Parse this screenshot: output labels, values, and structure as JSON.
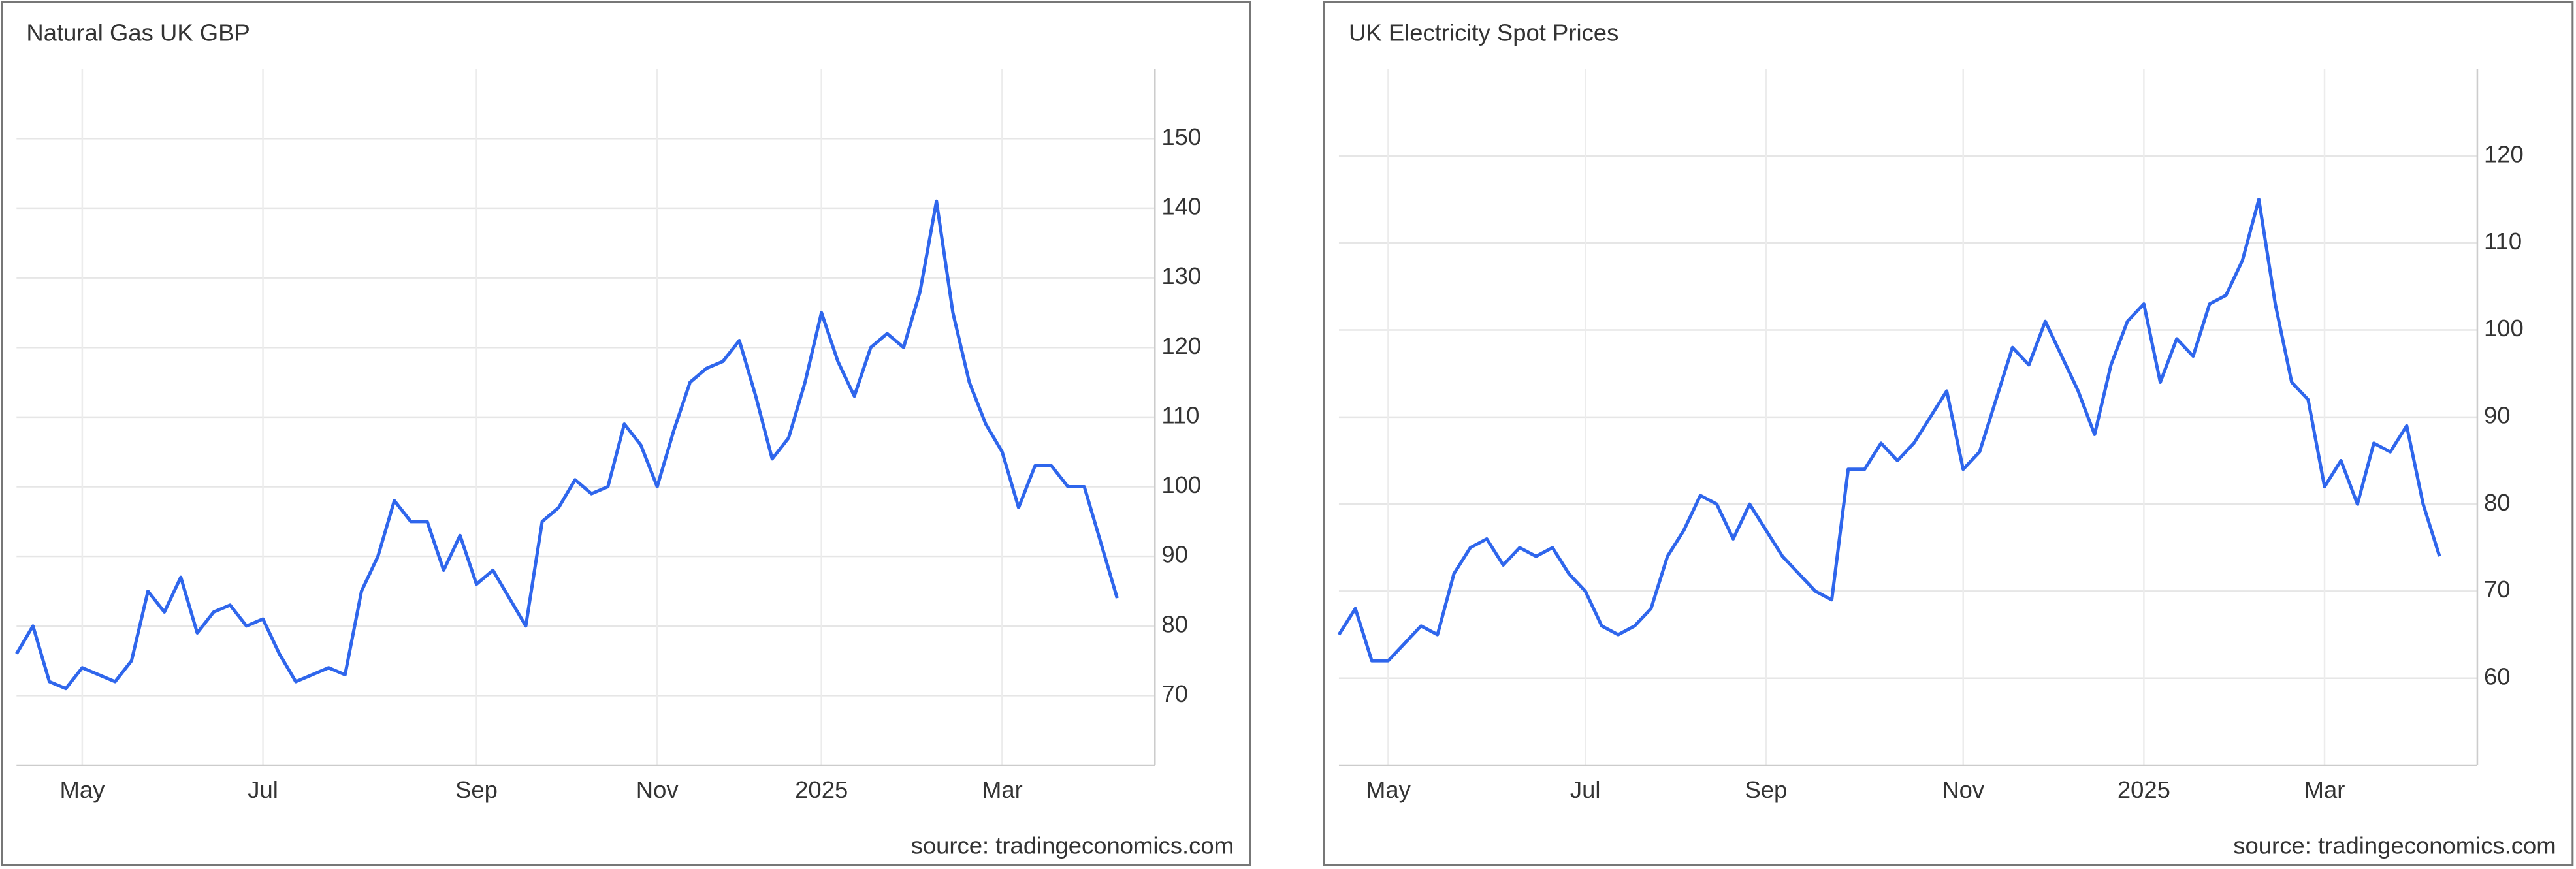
{
  "chart_data": [
    {
      "type": "line",
      "title": "Natural Gas UK GBP",
      "source": "source: tradingeconomics.com",
      "categories": [
        null,
        null,
        null,
        null,
        "May",
        null,
        null,
        null,
        null,
        null,
        null,
        null,
        null,
        null,
        null,
        "Jul",
        null,
        null,
        null,
        null,
        null,
        null,
        null,
        null,
        null,
        null,
        null,
        null,
        "Sep",
        null,
        null,
        null,
        null,
        null,
        null,
        null,
        null,
        null,
        null,
        "Nov",
        null,
        null,
        null,
        null,
        null,
        null,
        null,
        null,
        null,
        "2025",
        null,
        null,
        null,
        null,
        null,
        null,
        null,
        null,
        null,
        null,
        "Mar",
        null,
        null,
        null,
        null,
        null,
        null,
        null
      ],
      "series": [
        {
          "color": "#2f66ec",
          "values": [
            76,
            80,
            72,
            71,
            74,
            73,
            72,
            75,
            85,
            82,
            87,
            79,
            82,
            83,
            80,
            81,
            76,
            72,
            73,
            74,
            73,
            85,
            90,
            98,
            95,
            95,
            88,
            93,
            86,
            88,
            84,
            80,
            95,
            97,
            101,
            99,
            100,
            109,
            106,
            100,
            108,
            115,
            117,
            118,
            121,
            113,
            104,
            107,
            115,
            125,
            118,
            113,
            120,
            122,
            120,
            128,
            141,
            125,
            115,
            109,
            105,
            97,
            103,
            103,
            100,
            100,
            92,
            84
          ]
        }
      ],
      "ylim": [
        60,
        160
      ],
      "yticks": [
        70,
        80,
        90,
        100,
        110,
        120,
        130,
        140,
        150
      ],
      "grid": true
    },
    {
      "type": "line",
      "title": "UK Electricity Spot Prices",
      "source": "source: tradingeconomics.com",
      "categories": [
        null,
        null,
        null,
        "May",
        null,
        null,
        null,
        null,
        null,
        null,
        null,
        null,
        null,
        null,
        null,
        "Jul",
        null,
        null,
        null,
        null,
        null,
        null,
        null,
        null,
        null,
        null,
        "Sep",
        null,
        null,
        null,
        null,
        null,
        null,
        null,
        null,
        null,
        null,
        null,
        "Nov",
        null,
        null,
        null,
        null,
        null,
        null,
        null,
        null,
        null,
        null,
        "2025",
        null,
        null,
        null,
        null,
        null,
        null,
        null,
        null,
        null,
        null,
        "Mar",
        null,
        null,
        null,
        null,
        null,
        null,
        null
      ],
      "series": [
        {
          "color": "#2f66ec",
          "values": [
            65,
            68,
            62,
            62,
            64,
            66,
            65,
            72,
            75,
            76,
            73,
            75,
            74,
            75,
            72,
            70,
            66,
            65,
            66,
            68,
            74,
            77,
            81,
            80,
            76,
            80,
            77,
            74,
            72,
            70,
            69,
            84,
            84,
            87,
            85,
            87,
            90,
            93,
            84,
            86,
            92,
            98,
            96,
            101,
            97,
            93,
            88,
            96,
            101,
            103,
            94,
            99,
            97,
            103,
            104,
            108,
            115,
            103,
            94,
            92,
            82,
            85,
            80,
            87,
            86,
            89,
            80,
            74
          ]
        }
      ],
      "ylim": [
        50,
        130
      ],
      "yticks": [
        60,
        70,
        80,
        90,
        100,
        110,
        120
      ],
      "grid": true
    }
  ]
}
